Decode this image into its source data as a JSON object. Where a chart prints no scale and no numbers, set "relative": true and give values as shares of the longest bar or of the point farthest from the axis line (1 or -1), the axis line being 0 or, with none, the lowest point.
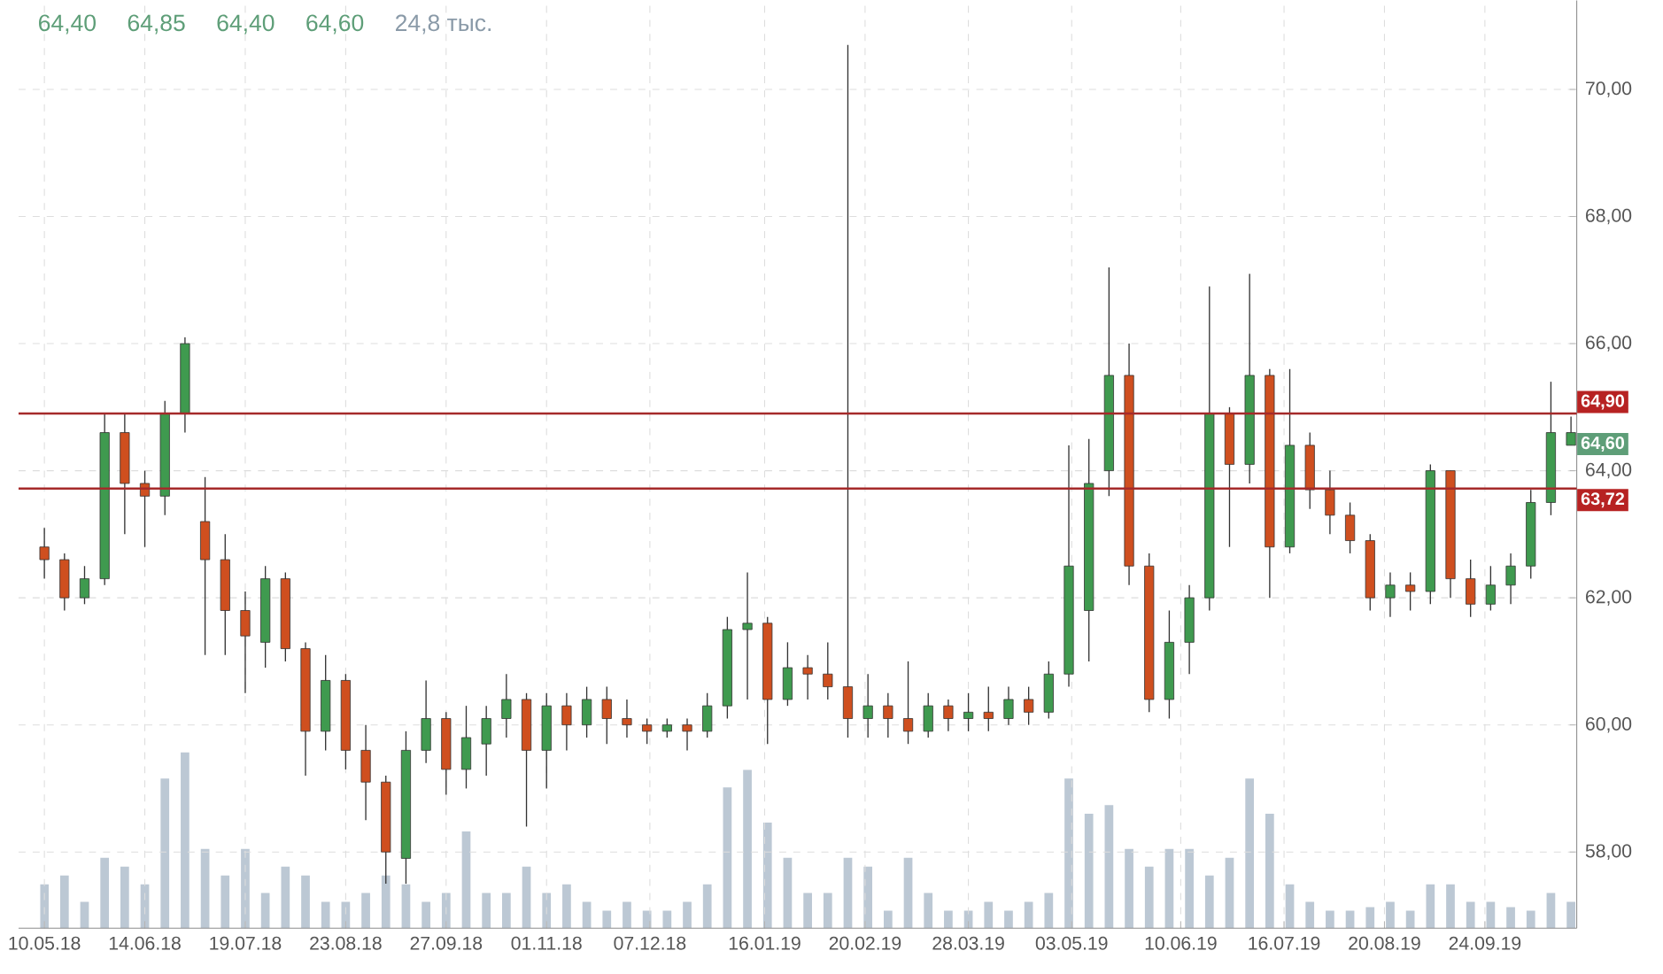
{
  "chart_data": [
    {
      "type": "candlestick",
      "x": [
        "2018-05-10",
        "2018-05-17",
        "2018-05-24",
        "2018-05-31",
        "2018-06-07",
        "2018-06-14",
        "2018-06-21",
        "2018-06-28",
        "2018-07-05",
        "2018-07-12",
        "2018-07-19",
        "2018-07-26",
        "2018-08-02",
        "2018-08-09",
        "2018-08-16",
        "2018-08-23",
        "2018-08-30",
        "2018-09-06",
        "2018-09-13",
        "2018-09-20",
        "2018-09-27",
        "2018-10-04",
        "2018-10-11",
        "2018-10-18",
        "2018-10-25",
        "2018-11-01",
        "2018-11-08",
        "2018-11-15",
        "2018-11-22",
        "2018-11-29",
        "2018-12-06",
        "2018-12-13",
        "2018-12-20",
        "2018-12-27",
        "2019-01-03",
        "2019-01-10",
        "2019-01-17",
        "2019-01-24",
        "2019-01-31",
        "2019-02-07",
        "2019-02-14",
        "2019-02-21",
        "2019-02-28",
        "2019-03-07",
        "2019-03-14",
        "2019-03-21",
        "2019-03-28",
        "2019-04-04",
        "2019-04-11",
        "2019-04-18",
        "2019-04-25",
        "2019-05-02",
        "2019-05-09",
        "2019-05-16",
        "2019-05-23",
        "2019-05-30",
        "2019-06-06",
        "2019-06-13",
        "2019-06-20",
        "2019-06-27",
        "2019-07-04",
        "2019-07-11",
        "2019-07-18",
        "2019-07-25",
        "2019-08-01",
        "2019-08-08",
        "2019-08-15",
        "2019-08-22",
        "2019-08-29",
        "2019-09-05",
        "2019-09-12",
        "2019-09-19",
        "2019-09-26",
        "2019-10-03",
        "2019-10-10",
        "2019-10-17",
        "2019-10-24"
      ],
      "ohlc": [
        [
          62.8,
          63.1,
          62.3,
          62.6
        ],
        [
          62.6,
          62.7,
          61.8,
          62.0
        ],
        [
          62.0,
          62.5,
          61.9,
          62.3
        ],
        [
          62.3,
          64.9,
          62.2,
          64.6
        ],
        [
          64.6,
          64.9,
          63.0,
          63.8
        ],
        [
          63.8,
          64.0,
          62.8,
          63.6
        ],
        [
          63.6,
          65.1,
          63.3,
          64.9
        ],
        [
          64.9,
          66.1,
          64.6,
          66.0
        ],
        [
          63.2,
          63.9,
          61.1,
          62.6
        ],
        [
          62.6,
          63.0,
          61.1,
          61.8
        ],
        [
          61.8,
          62.1,
          60.5,
          61.4
        ],
        [
          61.3,
          62.5,
          60.9,
          62.3
        ],
        [
          62.3,
          62.4,
          61.0,
          61.2
        ],
        [
          61.2,
          61.3,
          59.2,
          59.9
        ],
        [
          59.9,
          61.1,
          59.6,
          60.7
        ],
        [
          60.7,
          60.8,
          59.3,
          59.6
        ],
        [
          59.6,
          60.0,
          58.5,
          59.1
        ],
        [
          59.1,
          59.2,
          57.5,
          58.0
        ],
        [
          57.9,
          59.9,
          57.5,
          59.6
        ],
        [
          59.6,
          60.7,
          59.4,
          60.1
        ],
        [
          60.1,
          60.2,
          58.9,
          59.3
        ],
        [
          59.3,
          60.3,
          59.0,
          59.8
        ],
        [
          59.7,
          60.3,
          59.2,
          60.1
        ],
        [
          60.1,
          60.8,
          59.8,
          60.4
        ],
        [
          60.4,
          60.5,
          58.4,
          59.6
        ],
        [
          59.6,
          60.5,
          59.0,
          60.3
        ],
        [
          60.3,
          60.5,
          59.6,
          60.0
        ],
        [
          60.0,
          60.6,
          59.8,
          60.4
        ],
        [
          60.4,
          60.6,
          59.7,
          60.1
        ],
        [
          60.1,
          60.4,
          59.8,
          60.0
        ],
        [
          60.0,
          60.1,
          59.7,
          59.9
        ],
        [
          59.9,
          60.1,
          59.8,
          60.0
        ],
        [
          60.0,
          60.1,
          59.6,
          59.9
        ],
        [
          59.9,
          60.5,
          59.8,
          60.3
        ],
        [
          60.3,
          61.7,
          60.1,
          61.5
        ],
        [
          61.5,
          62.4,
          60.4,
          61.6
        ],
        [
          61.6,
          61.7,
          59.7,
          60.4
        ],
        [
          60.4,
          61.3,
          60.3,
          60.9
        ],
        [
          60.9,
          61.1,
          60.4,
          60.8
        ],
        [
          60.8,
          61.3,
          60.4,
          60.6
        ],
        [
          60.6,
          70.7,
          59.8,
          60.1
        ],
        [
          60.1,
          60.8,
          59.8,
          60.3
        ],
        [
          60.3,
          60.5,
          59.8,
          60.1
        ],
        [
          60.1,
          61.0,
          59.7,
          59.9
        ],
        [
          59.9,
          60.5,
          59.8,
          60.3
        ],
        [
          60.3,
          60.4,
          59.9,
          60.1
        ],
        [
          60.1,
          60.5,
          59.9,
          60.2
        ],
        [
          60.2,
          60.6,
          59.9,
          60.1
        ],
        [
          60.1,
          60.6,
          60.0,
          60.4
        ],
        [
          60.4,
          60.6,
          60.0,
          60.2
        ],
        [
          60.2,
          61.0,
          60.1,
          60.8
        ],
        [
          60.8,
          64.4,
          60.6,
          62.5
        ],
        [
          61.8,
          64.5,
          61.0,
          63.8
        ],
        [
          64.0,
          67.2,
          63.6,
          65.5
        ],
        [
          65.5,
          66.0,
          62.2,
          62.5
        ],
        [
          62.5,
          62.7,
          60.2,
          60.4
        ],
        [
          60.4,
          61.8,
          60.1,
          61.3
        ],
        [
          61.3,
          62.2,
          60.8,
          62.0
        ],
        [
          62.0,
          66.9,
          61.8,
          64.9
        ],
        [
          64.9,
          65.0,
          62.8,
          64.1
        ],
        [
          64.1,
          67.1,
          63.8,
          65.5
        ],
        [
          65.5,
          65.6,
          62.0,
          62.8
        ],
        [
          62.8,
          65.6,
          62.7,
          64.4
        ],
        [
          64.4,
          64.6,
          63.4,
          63.7
        ],
        [
          63.7,
          64.0,
          63.0,
          63.3
        ],
        [
          63.3,
          63.5,
          62.7,
          62.9
        ],
        [
          62.9,
          63.0,
          61.8,
          62.0
        ],
        [
          62.0,
          62.4,
          61.7,
          62.2
        ],
        [
          62.2,
          62.4,
          61.8,
          62.1
        ],
        [
          62.1,
          64.1,
          61.9,
          64.0
        ],
        [
          64.0,
          64.0,
          62.0,
          62.3
        ],
        [
          62.3,
          62.6,
          61.7,
          61.9
        ],
        [
          61.9,
          62.5,
          61.8,
          62.2
        ],
        [
          62.2,
          62.7,
          61.9,
          62.5
        ],
        [
          62.5,
          63.7,
          62.3,
          63.5
        ],
        [
          63.5,
          65.4,
          63.3,
          64.6
        ],
        [
          64.4,
          64.85,
          64.4,
          64.6
        ]
      ],
      "xlim": [
        "2018-05-01",
        "2019-10-26"
      ],
      "xticks": [
        {
          "value": "2018-05-10",
          "label": "10.05.18"
        },
        {
          "value": "2018-06-14",
          "label": "14.06.18"
        },
        {
          "value": "2018-07-19",
          "label": "19.07.18"
        },
        {
          "value": "2018-08-23",
          "label": "23.08.18"
        },
        {
          "value": "2018-09-27",
          "label": "27.09.18"
        },
        {
          "value": "2018-11-01",
          "label": "01.11.18"
        },
        {
          "value": "2018-12-07",
          "label": "07.12.18"
        },
        {
          "value": "2019-01-16",
          "label": "16.01.19"
        },
        {
          "value": "2019-02-20",
          "label": "20.02.19"
        },
        {
          "value": "2019-03-28",
          "label": "28.03.19"
        },
        {
          "value": "2019-05-03",
          "label": "03.05.19"
        },
        {
          "value": "2019-06-10",
          "label": "10.06.19"
        },
        {
          "value": "2019-07-16",
          "label": "16.07.19"
        },
        {
          "value": "2019-08-20",
          "label": "20.08.19"
        },
        {
          "value": "2019-09-24",
          "label": "24.09.19"
        }
      ],
      "ylim": [
        56.8,
        71.4
      ],
      "yticks": [
        {
          "value": 58,
          "label": "58,00"
        },
        {
          "value": 60,
          "label": "60,00"
        },
        {
          "value": 62,
          "label": "62,00"
        },
        {
          "value": 64,
          "label": "64,00"
        },
        {
          "value": 66,
          "label": "66,00"
        },
        {
          "value": 68,
          "label": "68,00"
        },
        {
          "value": 70,
          "label": "70,00"
        }
      ],
      "grid": true,
      "ref_lines": [
        {
          "axis": "y",
          "value": 64.9,
          "label": "64,90",
          "color": "#a52a2a"
        },
        {
          "axis": "y",
          "value": 63.72,
          "label": "63,72",
          "color": "#a52a2a"
        }
      ],
      "annotations": [
        "64,40",
        "64,85",
        "64,40",
        "64,60",
        "24,8 тыс.",
        "64,60"
      ]
    },
    {
      "type": "bar",
      "relative": true,
      "tick_labels": false,
      "color": "#bcc8d4",
      "xlim": [
        "2018-05-01",
        "2019-10-26"
      ],
      "x": [
        "2018-05-10",
        "2018-05-17",
        "2018-05-24",
        "2018-05-31",
        "2018-06-07",
        "2018-06-14",
        "2018-06-21",
        "2018-06-28",
        "2018-07-05",
        "2018-07-12",
        "2018-07-19",
        "2018-07-26",
        "2018-08-02",
        "2018-08-09",
        "2018-08-16",
        "2018-08-23",
        "2018-08-30",
        "2018-09-06",
        "2018-09-13",
        "2018-09-20",
        "2018-09-27",
        "2018-10-04",
        "2018-10-11",
        "2018-10-18",
        "2018-10-25",
        "2018-11-01",
        "2018-11-08",
        "2018-11-15",
        "2018-11-22",
        "2018-11-29",
        "2018-12-06",
        "2018-12-13",
        "2018-12-20",
        "2018-12-27",
        "2019-01-03",
        "2019-01-10",
        "2019-01-17",
        "2019-01-24",
        "2019-01-31",
        "2019-02-07",
        "2019-02-14",
        "2019-02-21",
        "2019-02-28",
        "2019-03-07",
        "2019-03-14",
        "2019-03-21",
        "2019-03-28",
        "2019-04-04",
        "2019-04-11",
        "2019-04-18",
        "2019-04-25",
        "2019-05-02",
        "2019-05-09",
        "2019-05-16",
        "2019-05-23",
        "2019-05-30",
        "2019-06-06",
        "2019-06-13",
        "2019-06-20",
        "2019-06-27",
        "2019-07-04",
        "2019-07-11",
        "2019-07-18",
        "2019-07-25",
        "2019-08-01",
        "2019-08-08",
        "2019-08-15",
        "2019-08-22",
        "2019-08-29",
        "2019-09-05",
        "2019-09-12",
        "2019-09-19",
        "2019-09-26",
        "2019-10-03",
        "2019-10-10",
        "2019-10-17",
        "2019-10-24"
      ],
      "values": [
        0.25,
        0.3,
        0.15,
        0.4,
        0.35,
        0.25,
        0.85,
        1,
        0.45,
        0.3,
        0.45,
        0.2,
        0.35,
        0.3,
        0.15,
        0.15,
        0.2,
        0.3,
        0.25,
        0.15,
        0.2,
        0.55,
        0.2,
        0.2,
        0.35,
        0.2,
        0.25,
        0.15,
        0.1,
        0.15,
        0.1,
        0.1,
        0.15,
        0.25,
        0.8,
        0.9,
        0.6,
        0.4,
        0.2,
        0.2,
        0.4,
        0.35,
        0.1,
        0.4,
        0.2,
        0.1,
        0.1,
        0.15,
        0.1,
        0.15,
        0.2,
        0.85,
        0.65,
        0.7,
        0.45,
        0.35,
        0.45,
        0.45,
        0.3,
        0.4,
        0.85,
        0.65,
        0.25,
        0.15,
        0.1,
        0.1,
        0.12,
        0.15,
        0.1,
        0.25,
        0.25,
        0.15,
        0.15,
        0.12,
        0.1,
        0.2,
        0.15
      ]
    }
  ]
}
